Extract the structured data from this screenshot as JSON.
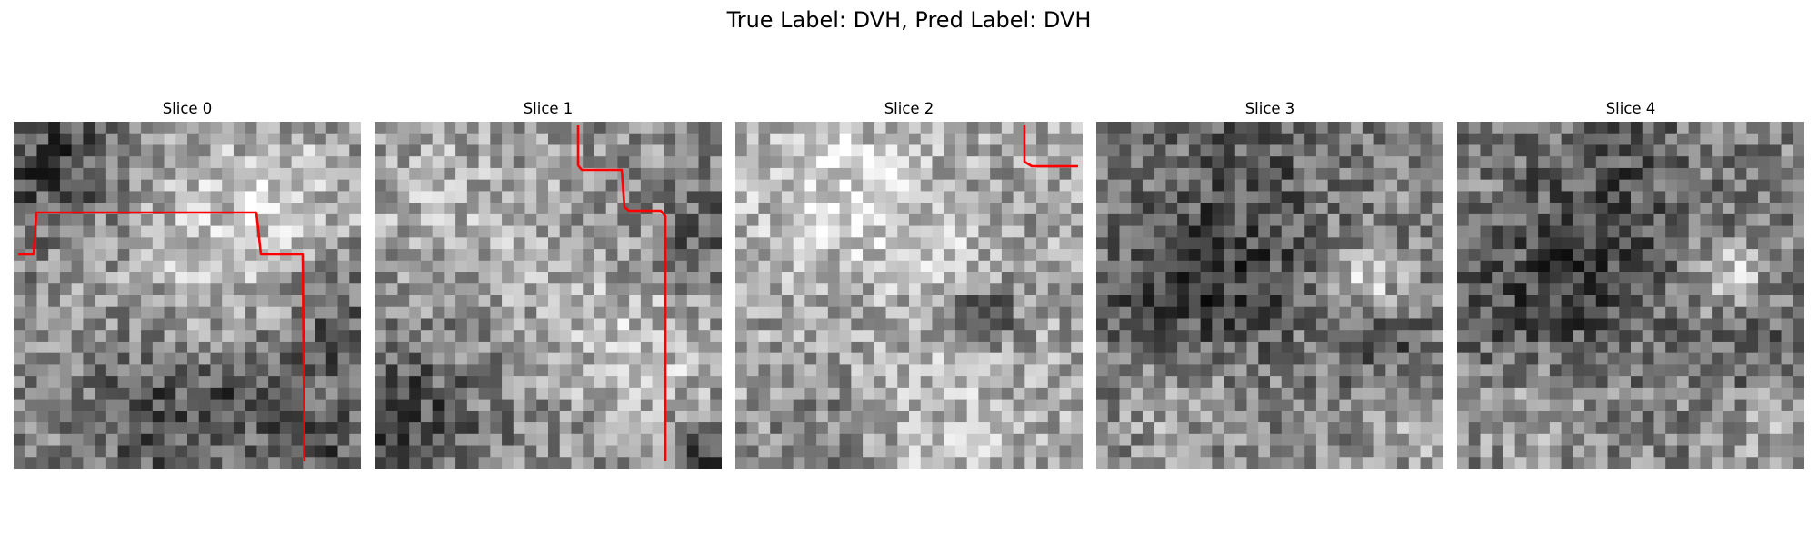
{
  "figure": {
    "title": "True Label: DVH, Pred Label: DVH",
    "true_label": "DVH",
    "pred_label": "DVH",
    "colormap": "gray",
    "overlay_color": "#ff0000"
  },
  "panels": [
    {
      "title": "Slice 0",
      "dark_regions": [
        "top-left",
        "bottom-center",
        "right-middle",
        "bottom-right"
      ],
      "light_regions": [
        "top-right",
        "center"
      ],
      "has_overlay": true
    },
    {
      "title": "Slice 1",
      "dark_regions": [
        "bottom-left",
        "bottom-right",
        "right-middle"
      ],
      "light_regions": [
        "top-left",
        "center-bottom-right"
      ],
      "has_overlay": true
    },
    {
      "title": "Slice 2",
      "dark_regions": [
        "center-right",
        "bottom-left"
      ],
      "light_regions": [
        "top",
        "left-middle",
        "bottom"
      ],
      "has_overlay": true
    },
    {
      "title": "Slice 3",
      "dark_regions": [
        "top-center",
        "left-middle",
        "center-right"
      ],
      "light_regions": [
        "bottom-right",
        "right-middle"
      ],
      "has_overlay": false
    },
    {
      "title": "Slice 4",
      "dark_regions": [
        "top-center",
        "left-middle",
        "center-right"
      ],
      "light_regions": [
        "bottom-right",
        "right-middle"
      ],
      "has_overlay": false
    }
  ]
}
